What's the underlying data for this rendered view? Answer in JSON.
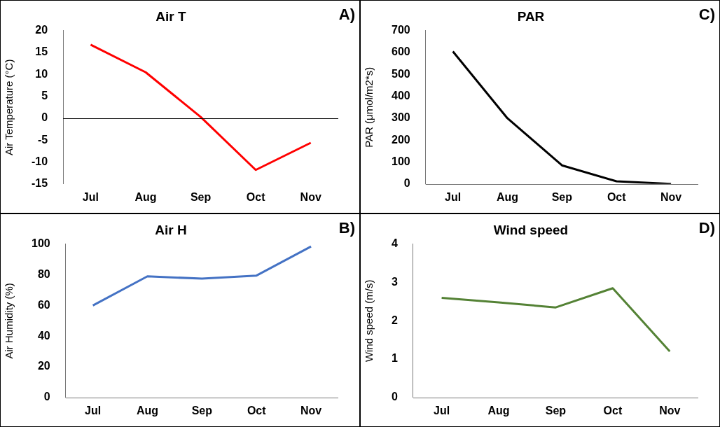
{
  "chart_data": [
    {
      "type": "line",
      "title": "Air T",
      "ylabel": "Air Temperature (°C)",
      "categories": [
        "Jul",
        "Aug",
        "Sep",
        "Oct",
        "Nov"
      ],
      "series": [
        {
          "color": "#ff0000",
          "values": [
            16.8,
            10.5,
            0.3,
            -11.8,
            -5.6
          ]
        }
      ],
      "ylim": [
        -15,
        20
      ],
      "yticks": [
        -15,
        -10,
        -5,
        0,
        5,
        10,
        15,
        20
      ],
      "ref_lines": [
        {
          "axis": "y",
          "value": 0,
          "color": "#000000"
        }
      ],
      "grid": false,
      "legend": false,
      "marker": "none",
      "annotations": [
        "A)"
      ]
    },
    {
      "type": "line",
      "title": "PAR",
      "ylabel": "PAR (μmol/m2*s)",
      "categories": [
        "Jul",
        "Aug",
        "Sep",
        "Oct",
        "Nov"
      ],
      "series": [
        {
          "color": "#000000",
          "values": [
            605,
            300,
            85,
            12,
            0
          ]
        }
      ],
      "ylim": [
        0,
        700
      ],
      "yticks": [
        0,
        100,
        200,
        300,
        400,
        500,
        600,
        700
      ],
      "grid": false,
      "legend": false,
      "marker": "none",
      "annotations": [
        "C)"
      ]
    },
    {
      "type": "line",
      "title": "Air H",
      "ylabel": "Air Humidity (%)",
      "categories": [
        "Jul",
        "Aug",
        "Sep",
        "Oct",
        "Nov"
      ],
      "series": [
        {
          "color": "#4472c4",
          "values": [
            60,
            79,
            77.5,
            79.5,
            98.5
          ]
        }
      ],
      "ylim": [
        0,
        100
      ],
      "yticks": [
        0,
        20,
        40,
        60,
        80,
        100
      ],
      "grid": false,
      "legend": false,
      "marker": "none",
      "annotations": [
        "B)"
      ]
    },
    {
      "type": "line",
      "title": "Wind speed",
      "ylabel": "Wind speed (m/s)",
      "categories": [
        "Jul",
        "Aug",
        "Sep",
        "Oct",
        "Nov"
      ],
      "series": [
        {
          "color": "#548235",
          "values": [
            2.6,
            2.48,
            2.35,
            2.85,
            1.2
          ]
        }
      ],
      "ylim": [
        0,
        4
      ],
      "yticks": [
        0,
        1,
        2,
        3,
        4
      ],
      "grid": false,
      "legend": false,
      "marker": "none",
      "annotations": [
        "D)"
      ]
    }
  ]
}
